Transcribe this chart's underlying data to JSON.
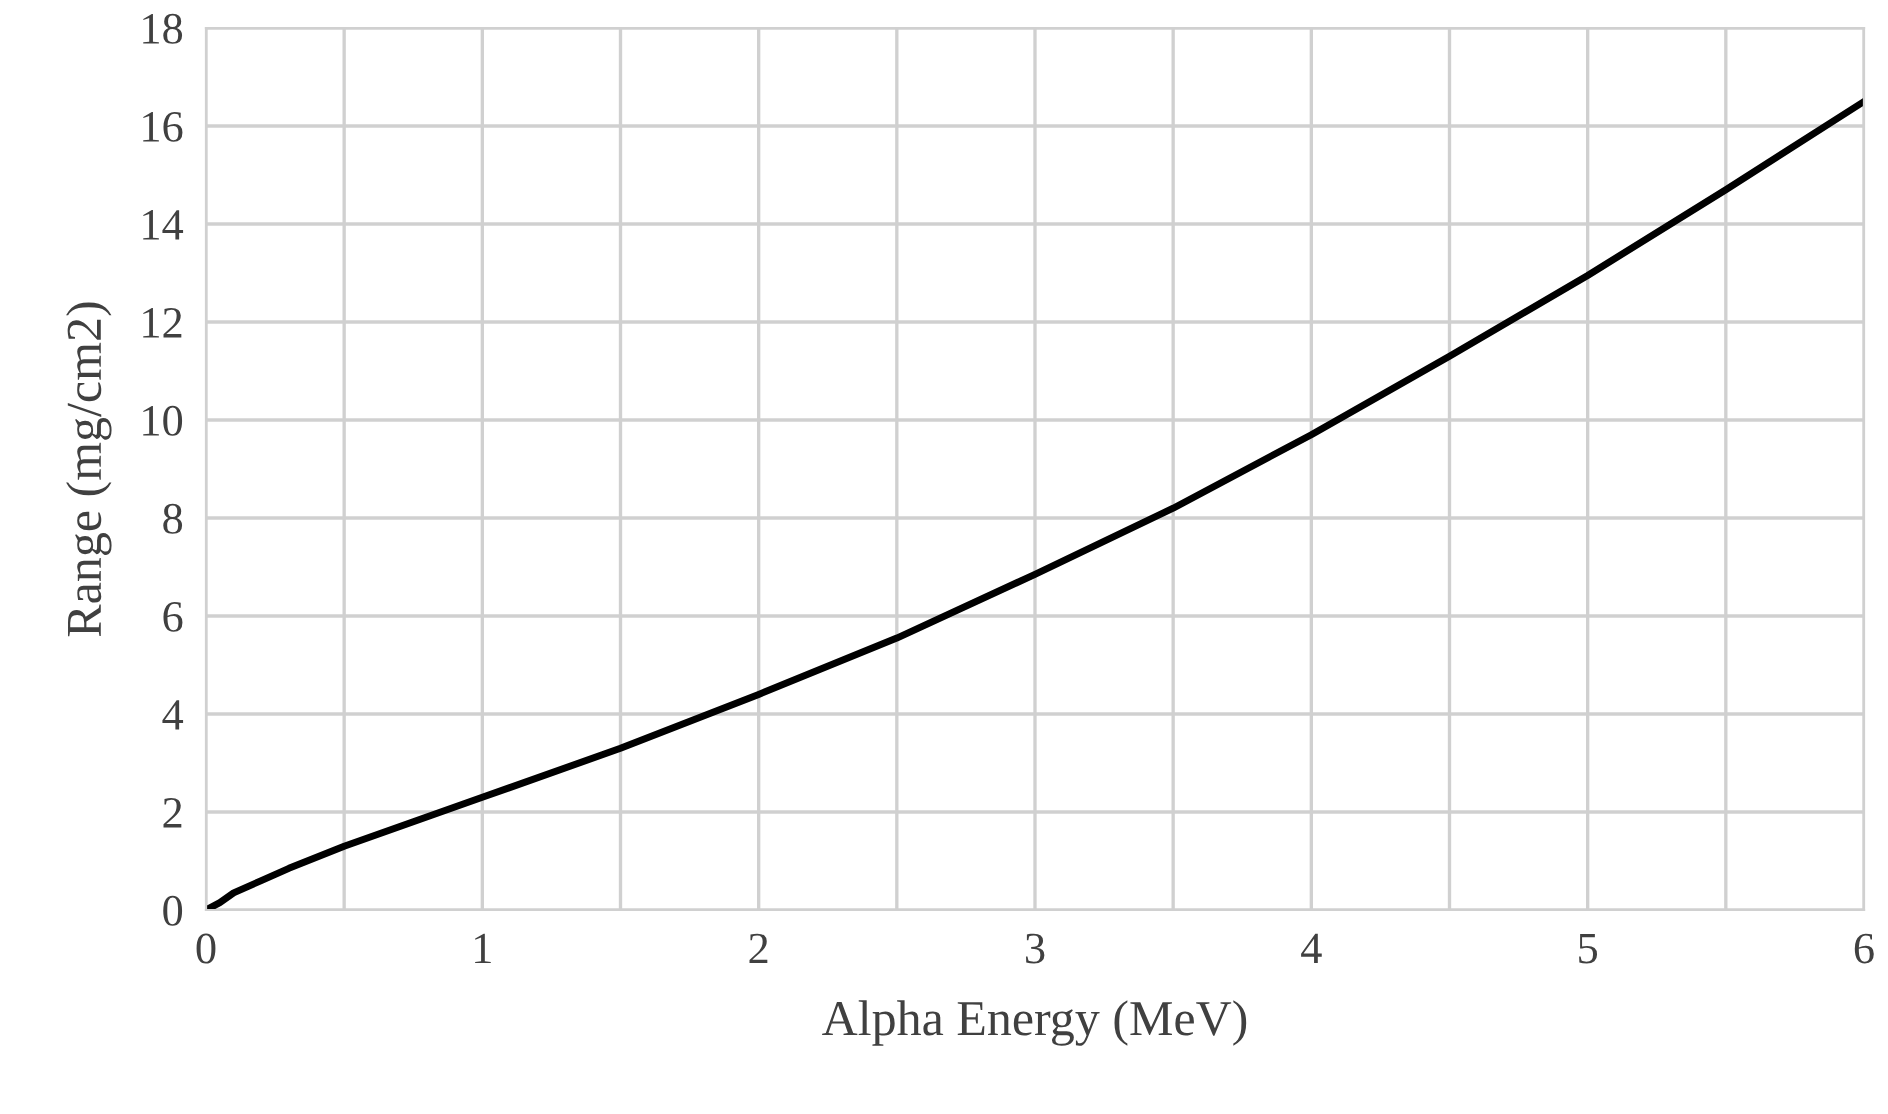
{
  "chart_data": {
    "type": "line",
    "xlabel": "Alpha Energy (MeV)",
    "ylabel": "Range (mg/cm2)",
    "x": [
      0,
      0.05,
      0.1,
      0.2,
      0.3,
      0.5,
      0.75,
      1,
      1.5,
      2,
      2.5,
      3,
      3.5,
      4,
      4.5,
      5,
      5.5,
      6
    ],
    "series": [
      {
        "color": "#000000",
        "values": [
          0,
          0.15,
          0.35,
          0.6,
          0.85,
          1.3,
          1.8,
          2.3,
          3.3,
          4.4,
          5.55,
          6.85,
          8.2,
          9.7,
          11.3,
          12.95,
          14.7,
          16.5
        ]
      }
    ],
    "xlim": [
      0,
      6
    ],
    "ylim": [
      0,
      18
    ],
    "xticks": [
      0,
      {
        "value": 0.5,
        "label": null
      },
      1,
      {
        "value": 1.5,
        "label": null
      },
      2,
      {
        "value": 2.5,
        "label": null
      },
      3,
      {
        "value": 3.5,
        "label": null
      },
      4,
      {
        "value": 4.5,
        "label": null
      },
      5,
      {
        "value": 5.5,
        "label": null
      },
      6
    ],
    "yticks": [
      0,
      2,
      4,
      6,
      8,
      10,
      12,
      14,
      16,
      18
    ],
    "grid": true,
    "legend": false,
    "marker": "none",
    "line_style": "solid"
  }
}
